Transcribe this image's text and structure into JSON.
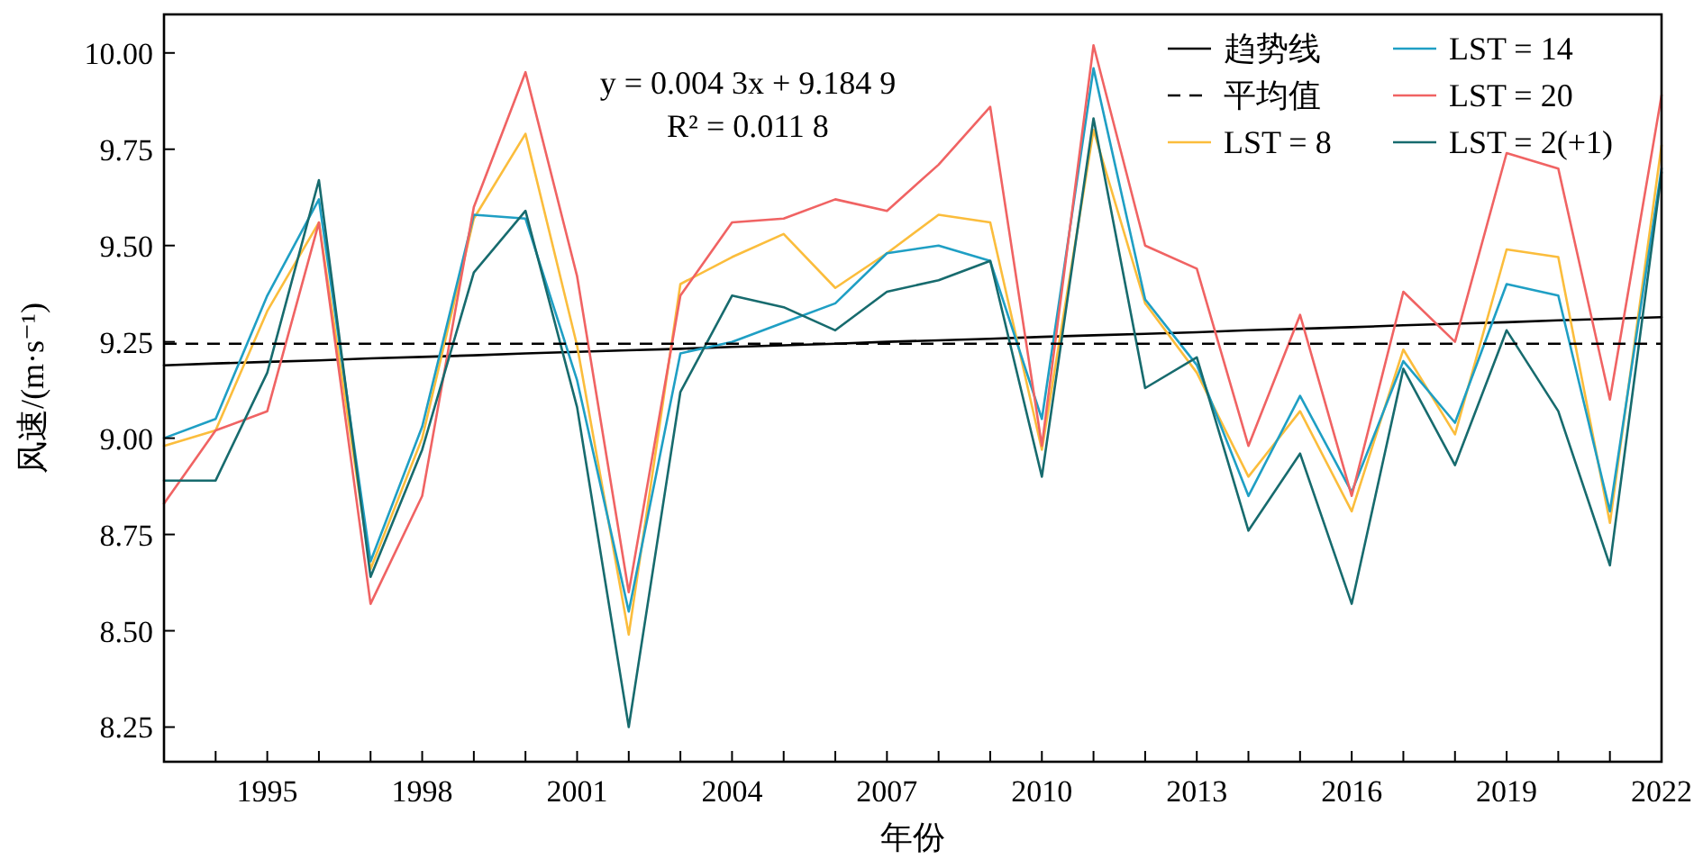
{
  "chart_data": {
    "type": "line",
    "xlabel": "年份",
    "ylabel": "风速/(m·s⁻¹)",
    "xlim": [
      1993,
      2022
    ],
    "ylim": [
      8.16,
      10.1
    ],
    "xticks": [
      {
        "value": 1993,
        "label": null
      },
      {
        "value": 1994,
        "label": null
      },
      1995,
      {
        "value": 1996,
        "label": null
      },
      {
        "value": 1997,
        "label": null
      },
      1998,
      {
        "value": 1999,
        "label": null
      },
      {
        "value": 2000,
        "label": null
      },
      2001,
      {
        "value": 2002,
        "label": null
      },
      {
        "value": 2003,
        "label": null
      },
      2004,
      {
        "value": 2005,
        "label": null
      },
      {
        "value": 2006,
        "label": null
      },
      2007,
      {
        "value": 2008,
        "label": null
      },
      {
        "value": 2009,
        "label": null
      },
      2010,
      {
        "value": 2011,
        "label": null
      },
      {
        "value": 2012,
        "label": null
      },
      2013,
      {
        "value": 2014,
        "label": null
      },
      {
        "value": 2015,
        "label": null
      },
      2016,
      {
        "value": 2017,
        "label": null
      },
      {
        "value": 2018,
        "label": null
      },
      2019,
      {
        "value": 2020,
        "label": null
      },
      {
        "value": 2021,
        "label": null
      },
      2022
    ],
    "yticks": [
      8.25,
      {
        "value": 8.5,
        "label": "8.50"
      },
      8.75,
      {
        "value": 9,
        "label": "9.00"
      },
      9.25,
      {
        "value": 9.5,
        "label": "9.50"
      },
      9.75,
      {
        "value": 10,
        "label": "10.00"
      }
    ],
    "x": [
      1993,
      1994,
      1995,
      1996,
      1997,
      1998,
      1999,
      2000,
      2001,
      2002,
      2003,
      2004,
      2005,
      2006,
      2007,
      2008,
      2009,
      2010,
      2011,
      2012,
      2013,
      2014,
      2015,
      2016,
      2017,
      2018,
      2019,
      2020,
      2021,
      2022
    ],
    "ref_lines": [
      {
        "axis": "y",
        "value": 9.245,
        "label": "平均值",
        "color": "#000000",
        "line_style": "dashed"
      }
    ],
    "grid": false,
    "legend": "top right",
    "marker": "none",
    "annotations": [
      "y = 0.004 3x + 9.184 9",
      "R² = 0.011 8"
    ],
    "series": [
      {
        "name": "趋势线",
        "color": "#000000",
        "line_style": "solid",
        "values": [
          9.189,
          9.194,
          9.198,
          9.202,
          9.207,
          9.211,
          9.215,
          9.22,
          9.224,
          9.228,
          9.232,
          9.237,
          9.241,
          9.245,
          9.25,
          9.254,
          9.258,
          9.263,
          9.267,
          9.271,
          9.275,
          9.28,
          9.284,
          9.288,
          9.293,
          9.297,
          9.301,
          9.306,
          9.31,
          9.314
        ]
      },
      {
        "name": "LST = 8",
        "color": "#fbbd3c",
        "values": [
          8.98,
          9.02,
          9.33,
          9.56,
          8.66,
          9.0,
          9.57,
          9.79,
          9.24,
          8.49,
          9.4,
          9.47,
          9.53,
          9.39,
          9.48,
          9.58,
          9.56,
          8.97,
          9.8,
          9.35,
          9.17,
          8.9,
          9.07,
          8.81,
          9.23,
          9.01,
          9.49,
          9.47,
          8.78,
          9.76
        ]
      },
      {
        "name": "LST = 14",
        "color": "#1f9fc4",
        "values": [
          9.0,
          9.05,
          9.37,
          9.62,
          8.68,
          9.03,
          9.58,
          9.57,
          9.15,
          8.55,
          9.22,
          9.25,
          9.3,
          9.35,
          9.48,
          9.5,
          9.46,
          9.05,
          9.96,
          9.36,
          9.19,
          8.85,
          9.11,
          8.86,
          9.2,
          9.04,
          9.4,
          9.37,
          8.81,
          9.7
        ]
      },
      {
        "name": "LST = 20",
        "color": "#f06363",
        "values": [
          8.83,
          9.02,
          9.07,
          9.56,
          8.57,
          8.85,
          9.6,
          9.95,
          9.42,
          8.6,
          9.37,
          9.56,
          9.57,
          9.62,
          9.59,
          9.71,
          9.86,
          8.98,
          10.02,
          9.5,
          9.44,
          8.98,
          9.32,
          8.85,
          9.38,
          9.25,
          9.74,
          9.7,
          9.1,
          9.89
        ]
      },
      {
        "name": "LST = 2(+1)",
        "color": "#176b6e",
        "values": [
          8.89,
          8.89,
          9.17,
          9.67,
          8.64,
          8.97,
          9.43,
          9.59,
          9.08,
          8.25,
          9.12,
          9.37,
          9.34,
          9.28,
          9.38,
          9.41,
          9.46,
          8.9,
          9.83,
          9.13,
          9.21,
          8.76,
          8.96,
          8.57,
          9.18,
          8.93,
          9.28,
          9.07,
          8.67,
          9.69
        ]
      }
    ]
  }
}
